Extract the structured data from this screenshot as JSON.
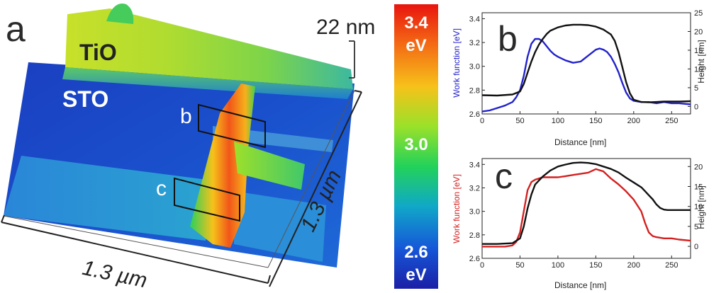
{
  "panel_a": {
    "letter": "a",
    "labels": {
      "tio": "TiO",
      "sto": "STO",
      "box_b": "b",
      "box_c": "c"
    },
    "height_scale": "22 nm",
    "x_scale": "1.3 µm",
    "y_scale": "1.3 µm"
  },
  "colorbar": {
    "top": "3.4",
    "top_unit": "eV",
    "mid": "3.0",
    "bottom": "2.6",
    "bottom_unit": "eV",
    "stops": [
      "#e8140f",
      "#f46a14",
      "#f6c21a",
      "#9ae12a",
      "#22d25a",
      "#10a8c8",
      "#1656d8",
      "#1b1fa6"
    ]
  },
  "chart_data": [
    {
      "type": "line",
      "panel": "b",
      "xlabel": "Distance [nm]",
      "ylabel_left": "Work function [eV]",
      "ylabel_right": "Height [nm]",
      "xlim": [
        0,
        275
      ],
      "ylim_left": [
        2.6,
        3.45
      ],
      "ylim_right": [
        -2,
        25
      ],
      "xticks": [
        0,
        50,
        100,
        150,
        200,
        250
      ],
      "yticks_left": [
        2.6,
        2.8,
        3.0,
        3.2,
        3.4
      ],
      "yticks_right": [
        0,
        5,
        10,
        15,
        20,
        25
      ],
      "series": [
        {
          "axis": "left",
          "color": "#2222cc",
          "x": [
            0,
            10,
            20,
            30,
            40,
            45,
            50,
            55,
            60,
            65,
            70,
            75,
            80,
            85,
            90,
            95,
            100,
            110,
            120,
            130,
            140,
            150,
            155,
            160,
            165,
            170,
            175,
            180,
            185,
            190,
            195,
            200,
            210,
            220,
            230,
            240,
            250,
            260,
            275
          ],
          "y": [
            2.62,
            2.63,
            2.65,
            2.67,
            2.7,
            2.74,
            2.8,
            2.92,
            3.08,
            3.19,
            3.23,
            3.23,
            3.21,
            3.17,
            3.13,
            3.1,
            3.08,
            3.05,
            3.03,
            3.04,
            3.09,
            3.14,
            3.15,
            3.14,
            3.12,
            3.08,
            3.02,
            2.95,
            2.86,
            2.78,
            2.73,
            2.71,
            2.7,
            2.7,
            2.69,
            2.7,
            2.69,
            2.69,
            2.68
          ]
        },
        {
          "axis": "right",
          "color": "#111111",
          "x": [
            0,
            20,
            40,
            50,
            55,
            60,
            65,
            70,
            75,
            80,
            85,
            90,
            100,
            110,
            120,
            130,
            140,
            150,
            160,
            170,
            175,
            180,
            185,
            190,
            195,
            200,
            210,
            220,
            230,
            240,
            250,
            260,
            275
          ],
          "y": [
            3.0,
            2.9,
            3.2,
            4.0,
            6.0,
            9.0,
            12.0,
            14.5,
            16.5,
            18.0,
            19.3,
            20.2,
            21.1,
            21.6,
            21.8,
            21.8,
            21.7,
            21.3,
            20.5,
            19.2,
            17.5,
            14.5,
            10.5,
            6.5,
            3.5,
            1.8,
            1.2,
            1.1,
            1.2,
            1.3,
            1.3,
            1.3,
            1.4
          ]
        }
      ]
    },
    {
      "type": "line",
      "panel": "c",
      "xlabel": "Distance [nm]",
      "ylabel_left": "Work function [eV]",
      "ylabel_right": "Height [nm]",
      "xlim": [
        0,
        275
      ],
      "ylim_left": [
        2.6,
        3.45
      ],
      "ylim_right": [
        -3,
        22
      ],
      "xticks": [
        0,
        50,
        100,
        150,
        200,
        250
      ],
      "yticks_left": [
        2.6,
        2.8,
        3.0,
        3.2,
        3.4
      ],
      "yticks_right": [
        0,
        5,
        10,
        15,
        20
      ],
      "series": [
        {
          "axis": "left",
          "color": "#d42020",
          "x": [
            0,
            10,
            20,
            30,
            40,
            45,
            50,
            55,
            60,
            65,
            70,
            75,
            80,
            90,
            100,
            110,
            120,
            130,
            140,
            150,
            160,
            170,
            180,
            190,
            200,
            210,
            215,
            220,
            225,
            230,
            240,
            250,
            260,
            275
          ],
          "y": [
            2.7,
            2.7,
            2.7,
            2.7,
            2.71,
            2.74,
            2.82,
            3.0,
            3.18,
            3.25,
            3.27,
            3.28,
            3.29,
            3.29,
            3.29,
            3.3,
            3.31,
            3.32,
            3.33,
            3.36,
            3.34,
            3.28,
            3.23,
            3.17,
            3.1,
            3.0,
            2.9,
            2.82,
            2.79,
            2.78,
            2.77,
            2.77,
            2.76,
            2.75
          ]
        },
        {
          "axis": "right",
          "color": "#111111",
          "x": [
            0,
            20,
            40,
            50,
            55,
            60,
            65,
            70,
            80,
            90,
            100,
            110,
            120,
            130,
            140,
            150,
            160,
            170,
            180,
            190,
            200,
            210,
            215,
            220,
            225,
            230,
            235,
            240,
            245,
            250,
            260,
            275
          ],
          "y": [
            0.6,
            0.6,
            0.8,
            2.0,
            5.0,
            9.5,
            13.0,
            15.5,
            17.5,
            19.0,
            20.0,
            20.5,
            20.9,
            21.0,
            20.9,
            20.6,
            20.0,
            19.4,
            18.5,
            17.2,
            16.0,
            14.8,
            13.8,
            12.8,
            11.8,
            10.5,
            9.6,
            9.2,
            9.1,
            9.1,
            9.1,
            9.1
          ]
        }
      ]
    }
  ]
}
